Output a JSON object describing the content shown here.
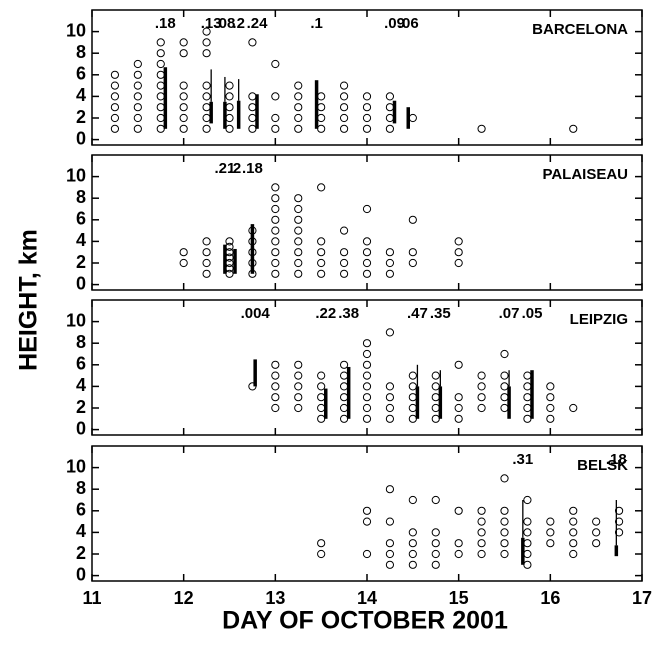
{
  "xlabel": "DAY OF OCTOBER 2001",
  "ylabel": "HEIGHT, km",
  "chart_data": [
    {
      "type": "scatter",
      "title": "BARCELONA",
      "xlim": [
        11,
        17
      ],
      "ylim": [
        -0.5,
        12
      ],
      "xticks": [
        11,
        12,
        13,
        14,
        15,
        16,
        17
      ],
      "yticks": [
        0,
        2,
        4,
        6,
        8,
        10
      ],
      "columns": [
        {
          "x": 11.25,
          "heights": [
            1,
            2,
            3,
            4,
            5,
            6
          ]
        },
        {
          "x": 11.5,
          "heights": [
            1,
            2,
            3,
            4,
            5,
            6,
            7
          ]
        },
        {
          "x": 11.75,
          "heights": [
            1,
            2,
            3,
            4,
            5,
            6,
            7,
            8,
            9
          ]
        },
        {
          "x": 12.0,
          "heights": [
            1,
            2,
            3,
            4,
            5,
            8,
            9
          ]
        },
        {
          "x": 12.25,
          "heights": [
            1,
            2,
            3,
            4,
            5,
            8,
            9,
            10
          ]
        },
        {
          "x": 12.5,
          "heights": [
            1,
            2,
            3,
            4,
            5
          ]
        },
        {
          "x": 12.75,
          "heights": [
            1,
            2,
            3,
            4,
            9
          ]
        },
        {
          "x": 13.0,
          "heights": [
            1,
            2,
            4,
            7
          ]
        },
        {
          "x": 13.25,
          "heights": [
            1,
            2,
            3,
            4,
            5
          ]
        },
        {
          "x": 13.5,
          "heights": [
            1,
            2,
            3,
            4
          ]
        },
        {
          "x": 13.75,
          "heights": [
            1,
            2,
            3,
            4,
            5
          ]
        },
        {
          "x": 14.0,
          "heights": [
            1,
            2,
            3,
            4
          ]
        },
        {
          "x": 14.25,
          "heights": [
            1,
            2,
            3,
            4
          ]
        },
        {
          "x": 14.5,
          "heights": [
            2
          ]
        },
        {
          "x": 15.25,
          "heights": [
            1
          ]
        },
        {
          "x": 16.25,
          "heights": [
            1
          ]
        }
      ],
      "bars": [
        {
          "x": 11.8,
          "low": 1,
          "high": 6.7,
          "top": 6.7,
          "value": 0.18,
          "value_label": ".18"
        },
        {
          "x": 12.3,
          "low": 1.5,
          "high": 3.5,
          "top": 6.5,
          "value": 0.13,
          "value_label": ".13"
        },
        {
          "x": 12.45,
          "low": 1,
          "high": 3.5,
          "top": 5.8,
          "value": 0.08,
          "value_label": ".08"
        },
        {
          "x": 12.6,
          "low": 1,
          "high": 3.6,
          "top": 5.6,
          "value": 0.2,
          "value_label": ".2"
        },
        {
          "x": 12.8,
          "low": 1,
          "high": 4.2,
          "top": 4.2,
          "value": 0.24,
          "value_label": ".24"
        },
        {
          "x": 13.45,
          "low": 1,
          "high": 5.5,
          "top": 5.5,
          "value": 0.1,
          "value_label": ".1"
        },
        {
          "x": 14.3,
          "low": 1.5,
          "high": 3.6,
          "top": 3.6,
          "value": 0.09,
          "value_label": ".09"
        },
        {
          "x": 14.45,
          "low": 1,
          "high": 3,
          "top": 3,
          "value": 0.06,
          "value_label": ".06"
        }
      ]
    },
    {
      "type": "scatter",
      "title": "PALAISEAU",
      "xlim": [
        11,
        17
      ],
      "ylim": [
        -0.5,
        12
      ],
      "xticks": [
        11,
        12,
        13,
        14,
        15,
        16,
        17
      ],
      "yticks": [
        0,
        2,
        4,
        6,
        8,
        10
      ],
      "columns": [
        {
          "x": 12.0,
          "heights": [
            2,
            3
          ]
        },
        {
          "x": 12.25,
          "heights": [
            1,
            2,
            3,
            4
          ]
        },
        {
          "x": 12.5,
          "heights": [
            1,
            1.5,
            2,
            2.5,
            3,
            3.5,
            4
          ]
        },
        {
          "x": 12.75,
          "heights": [
            1,
            2,
            3,
            4,
            5
          ]
        },
        {
          "x": 13.0,
          "heights": [
            1,
            2,
            3,
            4,
            5,
            6,
            7,
            8,
            9
          ]
        },
        {
          "x": 13.25,
          "heights": [
            1,
            2,
            3,
            4,
            5,
            6,
            7,
            8
          ]
        },
        {
          "x": 13.5,
          "heights": [
            1,
            2,
            3,
            4,
            9
          ]
        },
        {
          "x": 13.75,
          "heights": [
            1,
            2,
            3,
            5
          ]
        },
        {
          "x": 14.0,
          "heights": [
            1,
            2,
            3,
            4,
            7
          ]
        },
        {
          "x": 14.25,
          "heights": [
            1,
            2,
            3
          ]
        },
        {
          "x": 14.5,
          "heights": [
            2,
            3,
            6
          ]
        },
        {
          "x": 15.0,
          "heights": [
            2,
            3,
            4
          ]
        }
      ],
      "bars": [
        {
          "x": 12.45,
          "low": 1,
          "high": 3.7,
          "top": 3.7,
          "value": 0.21,
          "value_label": ".21"
        },
        {
          "x": 12.56,
          "low": 1,
          "high": 3.3,
          "top": 3.3,
          "value": 0.2,
          "value_label": ".2"
        },
        {
          "x": 12.75,
          "low": 1,
          "high": 5.6,
          "top": 5.6,
          "value": 0.18,
          "value_label": ".18"
        }
      ]
    },
    {
      "type": "scatter",
      "title": "LEIPZIG",
      "xlim": [
        11,
        17
      ],
      "ylim": [
        -0.5,
        12
      ],
      "xticks": [
        11,
        12,
        13,
        14,
        15,
        16,
        17
      ],
      "yticks": [
        0,
        2,
        4,
        6,
        8,
        10
      ],
      "columns": [
        {
          "x": 12.75,
          "heights": [
            4
          ]
        },
        {
          "x": 13.0,
          "heights": [
            2,
            3,
            4,
            5,
            6
          ]
        },
        {
          "x": 13.25,
          "heights": [
            2,
            3,
            4,
            5,
            6
          ]
        },
        {
          "x": 13.5,
          "heights": [
            1,
            2,
            3,
            4,
            5
          ]
        },
        {
          "x": 13.75,
          "heights": [
            1,
            2,
            3,
            4,
            5,
            6
          ]
        },
        {
          "x": 14.0,
          "heights": [
            1,
            2,
            3,
            4,
            5,
            6,
            7,
            8
          ]
        },
        {
          "x": 14.25,
          "heights": [
            1,
            2,
            3,
            4,
            9
          ]
        },
        {
          "x": 14.5,
          "heights": [
            1,
            2,
            3,
            4,
            5
          ]
        },
        {
          "x": 14.75,
          "heights": [
            1,
            2,
            3,
            4,
            5
          ]
        },
        {
          "x": 15.0,
          "heights": [
            1,
            2,
            3,
            6
          ]
        },
        {
          "x": 15.25,
          "heights": [
            2,
            3,
            4,
            5
          ]
        },
        {
          "x": 15.5,
          "heights": [
            2,
            3,
            4,
            5,
            7
          ]
        },
        {
          "x": 15.75,
          "heights": [
            1,
            2,
            3,
            4,
            5
          ]
        },
        {
          "x": 16.0,
          "heights": [
            1,
            2,
            3,
            4
          ]
        },
        {
          "x": 16.25,
          "heights": [
            2
          ]
        }
      ],
      "bars": [
        {
          "x": 12.78,
          "low": 4,
          "high": 6.5,
          "top": 6.5,
          "value": 0.004,
          "value_label": ".004"
        },
        {
          "x": 13.55,
          "low": 1,
          "high": 3.8,
          "top": 3.8,
          "value": 0.22,
          "value_label": ".22"
        },
        {
          "x": 13.8,
          "low": 1,
          "high": 5.8,
          "top": 5.8,
          "value": 0.38,
          "value_label": ".38"
        },
        {
          "x": 14.55,
          "low": 1,
          "high": 4,
          "top": 6,
          "value": 0.47,
          "value_label": ".47"
        },
        {
          "x": 14.8,
          "low": 1,
          "high": 4,
          "top": 5.5,
          "value": 0.35,
          "value_label": ".35"
        },
        {
          "x": 15.55,
          "low": 1,
          "high": 4,
          "top": 5.5,
          "value": 0.07,
          "value_label": ".07"
        },
        {
          "x": 15.8,
          "low": 1,
          "high": 5.5,
          "top": 5.5,
          "value": 0.05,
          "value_label": ".05"
        }
      ]
    },
    {
      "type": "scatter",
      "title": "BELSK",
      "xlim": [
        11,
        17
      ],
      "ylim": [
        -0.5,
        12
      ],
      "xticks": [
        11,
        12,
        13,
        14,
        15,
        16,
        17
      ],
      "yticks": [
        0,
        2,
        4,
        6,
        8,
        10
      ],
      "columns": [
        {
          "x": 13.5,
          "heights": [
            2,
            3
          ]
        },
        {
          "x": 14.0,
          "heights": [
            2,
            5,
            6
          ]
        },
        {
          "x": 14.25,
          "heights": [
            1,
            2,
            3,
            5,
            8
          ]
        },
        {
          "x": 14.5,
          "heights": [
            1,
            2,
            3,
            4,
            7
          ]
        },
        {
          "x": 14.75,
          "heights": [
            1,
            2,
            3,
            4,
            7
          ]
        },
        {
          "x": 15.0,
          "heights": [
            2,
            3,
            6
          ]
        },
        {
          "x": 15.25,
          "heights": [
            2,
            3,
            4,
            5,
            6
          ]
        },
        {
          "x": 15.5,
          "heights": [
            2,
            3,
            4,
            5,
            6,
            9
          ]
        },
        {
          "x": 15.75,
          "heights": [
            1,
            2,
            3,
            4,
            5,
            7
          ]
        },
        {
          "x": 16.0,
          "heights": [
            3,
            4,
            5
          ]
        },
        {
          "x": 16.25,
          "heights": [
            2,
            3,
            4,
            5,
            6
          ]
        },
        {
          "x": 16.5,
          "heights": [
            3,
            4,
            5
          ]
        },
        {
          "x": 16.75,
          "heights": [
            4,
            5,
            6
          ]
        }
      ],
      "bars": [
        {
          "x": 15.7,
          "low": 1,
          "high": 3.5,
          "top": 7,
          "value": 0.31,
          "value_label": ".31"
        },
        {
          "x": 16.72,
          "low": 1.8,
          "high": 2.8,
          "top": 7,
          "value": 0.18,
          "value_label": ".18"
        }
      ]
    }
  ]
}
